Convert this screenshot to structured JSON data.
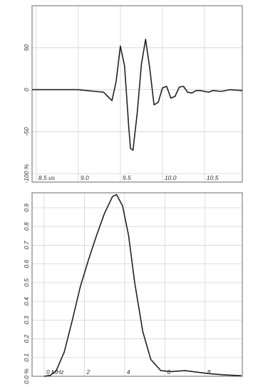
{
  "colors": {
    "trace": "#222222",
    "grid": "#d4d4d4",
    "frame": "#6a6a6a"
  },
  "chart_data": [
    {
      "type": "line",
      "title": "",
      "xlabel": "",
      "ylabel": "",
      "grid": true,
      "xlim": [
        8.45,
        10.95
      ],
      "ylim": [
        -110,
        100
      ],
      "x_ticks": [
        8.5,
        9.0,
        9.5,
        10.0,
        10.5
      ],
      "x_tick_labels": [
        "8.5 us",
        "9.0",
        "9.5",
        "10.0",
        "10.5"
      ],
      "y_ticks": [
        50,
        0,
        -50,
        -100
      ],
      "y_tick_labels": [
        "50",
        "0",
        "-50",
        "-100 %"
      ],
      "series": [
        {
          "x": [
            8.45,
            8.8,
            9.0,
            9.1,
            9.2,
            9.3,
            9.35,
            9.4,
            9.45,
            9.5,
            9.55,
            9.6,
            9.62,
            9.65,
            9.7,
            9.75,
            9.8,
            9.85,
            9.9,
            9.95,
            10.0,
            10.05,
            10.1,
            10.15,
            10.2,
            10.25,
            10.3,
            10.35,
            10.4,
            10.45,
            10.5,
            10.55,
            10.6,
            10.7,
            10.8,
            10.95
          ],
          "y": [
            0,
            0,
            0,
            -1,
            -2,
            -3,
            -8,
            -13,
            10,
            52,
            28,
            -45,
            -70,
            -72,
            -28,
            30,
            60,
            25,
            -18,
            -15,
            2,
            4,
            -10,
            -8,
            3,
            4,
            -3,
            -4,
            -1,
            -1,
            -2,
            -3,
            -1,
            -2,
            0,
            -1
          ]
        }
      ]
    },
    {
      "type": "line",
      "title": "",
      "xlabel": "",
      "ylabel": "",
      "grid": true,
      "xlim": [
        -0.6,
        9.85
      ],
      "ylim": [
        0,
        0.98
      ],
      "x_ticks": [
        0,
        2,
        4,
        6,
        8
      ],
      "x_tick_labels": [
        "0 MHz",
        "2",
        "4",
        "6",
        "8"
      ],
      "y_ticks": [
        0.0,
        0.1,
        0.2,
        0.3,
        0.4,
        0.5,
        0.6,
        0.7,
        0.8,
        0.9
      ],
      "y_tick_labels": [
        "0.0 %",
        "0.1",
        "0.2",
        "0.3",
        "0.4",
        "0.5",
        "0.6",
        "0.7",
        "0.8",
        "0.9"
      ],
      "series": [
        {
          "x": [
            0,
            0.3,
            0.6,
            1.0,
            1.4,
            1.8,
            2.2,
            2.6,
            3.0,
            3.4,
            3.6,
            3.9,
            4.2,
            4.5,
            4.9,
            5.3,
            5.8,
            6.3,
            7.0,
            7.6,
            8.2,
            8.9,
            9.8
          ],
          "y": [
            0,
            0.005,
            0.03,
            0.13,
            0.3,
            0.48,
            0.62,
            0.75,
            0.87,
            0.96,
            0.97,
            0.91,
            0.75,
            0.5,
            0.24,
            0.09,
            0.03,
            0.025,
            0.03,
            0.022,
            0.014,
            0.008,
            0.003
          ]
        }
      ]
    }
  ]
}
